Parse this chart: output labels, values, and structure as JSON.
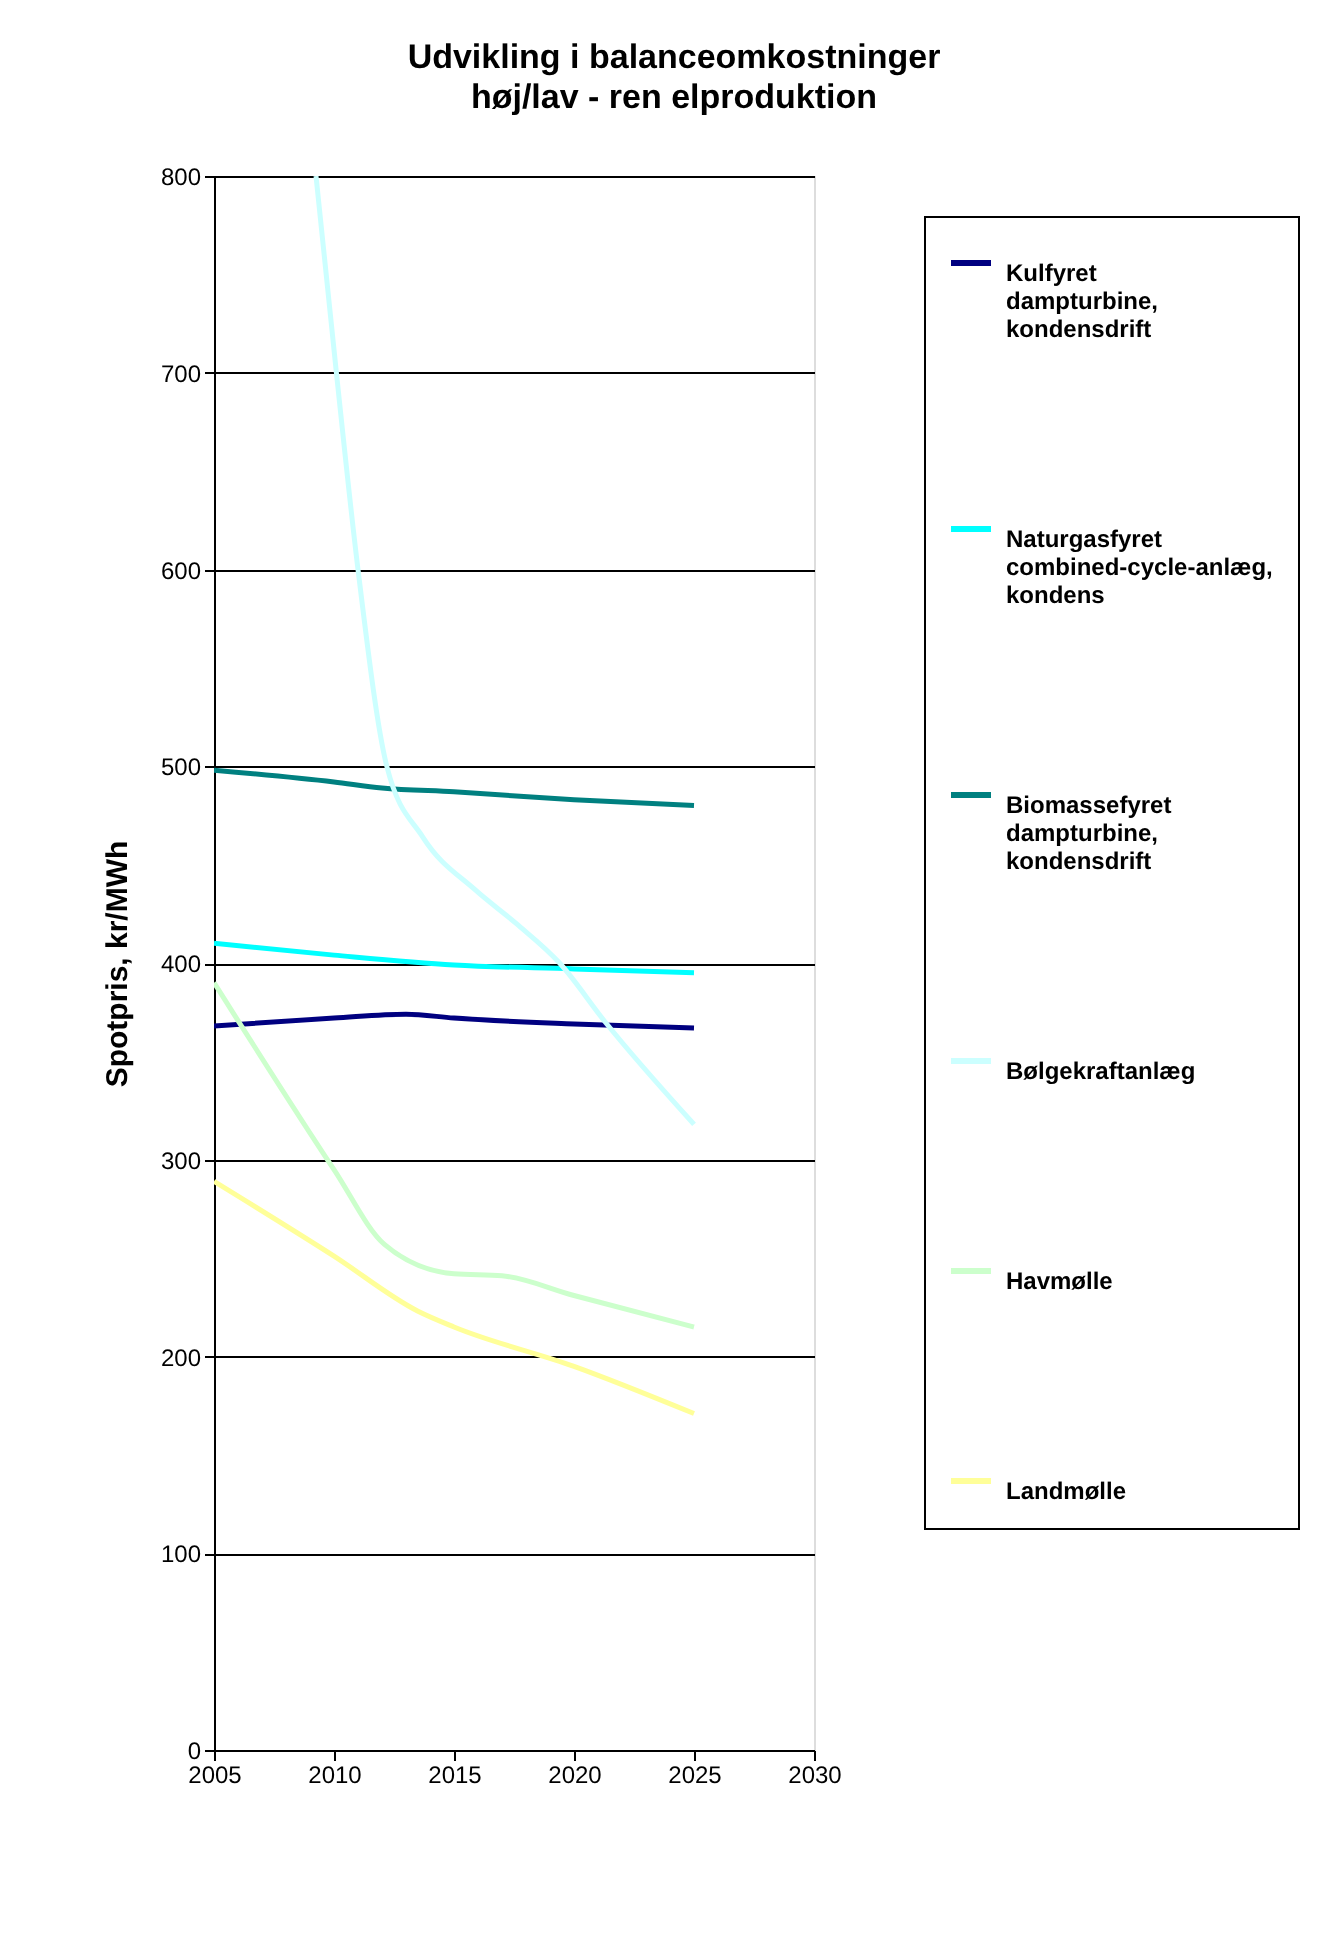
{
  "chart_data": {
    "type": "line",
    "title": "Udvikling i balanceomkostninger",
    "subtitle": "høj/lav - ren elproduktion",
    "ylabel": "Spotpris, kr/MWh",
    "xlim": [
      2005,
      2030
    ],
    "xticks": [
      2005,
      2010,
      2015,
      2020,
      2025,
      2030
    ],
    "ylim": [
      0,
      800
    ],
    "yticks": [
      0,
      100,
      200,
      300,
      400,
      500,
      600,
      700,
      800
    ],
    "grid": "y",
    "legend": "right",
    "series": [
      {
        "name": "Kulfyret dampturbine, kondensdrift",
        "color": "#000080",
        "x": [
          2005,
          2010,
          2013,
          2015,
          2020,
          2025
        ],
        "values": [
          368,
          372,
          374,
          372,
          369,
          367
        ]
      },
      {
        "name": "Naturgasfyret combined-cycle-anlæg, kondens",
        "color": "#00ffff",
        "x": [
          2005,
          2010,
          2015,
          2020,
          2025
        ],
        "values": [
          410,
          404,
          399,
          397,
          395
        ]
      },
      {
        "name": "Biomassefyret dampturbine, kondensdrift",
        "color": "#008080",
        "x": [
          2005,
          2010,
          2012,
          2015,
          2020,
          2025
        ],
        "values": [
          498,
          492,
          489,
          487,
          483,
          480
        ]
      },
      {
        "name": "Bølgekraftanlæg",
        "color": "#ccffff",
        "x": [
          2009.25,
          2010.1,
          2011,
          2012.2,
          2013.7,
          2015.9,
          2017.6,
          2019.4,
          2021.3,
          2025
        ],
        "values": [
          800,
          700,
          600,
          500,
          464,
          437,
          420,
          400,
          370,
          318
        ]
      },
      {
        "name": "Havmølle",
        "color": "#ccffcc",
        "x": [
          2005,
          2010,
          2012.1,
          2015,
          2017,
          2020,
          2025
        ],
        "values": [
          390,
          295,
          257,
          242,
          241,
          231,
          215
        ]
      },
      {
        "name": "Landmølle",
        "color": "#ffff99",
        "x": [
          2005,
          2010,
          2013.5,
          2015,
          2020,
          2025
        ],
        "values": [
          289,
          251,
          223,
          215,
          195,
          171
        ]
      }
    ]
  }
}
